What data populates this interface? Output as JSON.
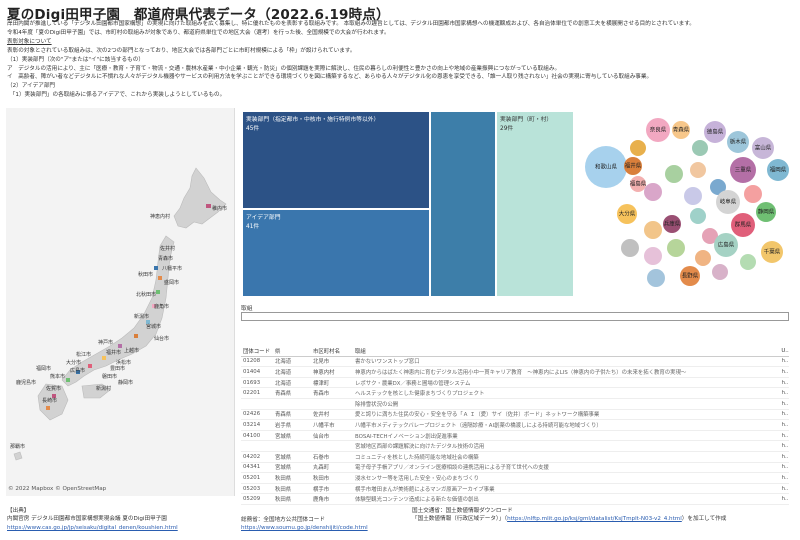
{
  "title": "夏のDigi田甲子園　都道府県代表データ（2022.6.19時点）",
  "intro": {
    "lines": [
      "岸田内閣が推進している「デジタル田園都市国家構想」の実現に向けた取組みを広く募集し、特に優れたものを表彰する取組みです。 本取組みの趣旨としては、デジタル田園都市国家構想への機運醸成および、各自治体単位での創意工夫を横展開させる目的とされています。",
      "令和4年度「夏のDigi田甲子園」では、市町村の取組みが対象であり、都道府県単位での地区大会（選考）を行った後、全国規模での大会が行われます。"
    ],
    "section_heading": "表彰対象について",
    "detail_lines": [
      "表彰の対象とされている取組みは、次の2つの部門となっており、地区大会では各部門ごとに市町村規模による「枠」が設けられています。",
      "（1）実装部門（次の\"ア\"または\"イ\"に該当するもの）",
      "ア　デジタルの活用により、主に「医療・教育・子育て・物流・交通・農林水産業・中小企業・観光・防災」の個別課題を実際に解決し、住民の暮らしの利便性と豊かさの向上や地域の産業振興につながっている取組み。",
      "イ　高齢者、障がい者などデジタルに不慣れな人々がデジタル機器やサービスの利用方法を学ぶことができる環境づくりを図に構築するなど、あらゆる人々がデジタル化の恩恵を享受できる、「誰一人取り残されない」社会の実現に寄与している取組み事業。",
      "（2）アイデア部門",
      "　「1）実装部門」の各取組みに係るアイデアで、これから実装しようとしているもの。"
    ]
  },
  "map": {
    "credit": "© 2022 Mapbox  © OpenStreetMap",
    "labels": [
      "稚内市",
      "神恵内村",
      "佐井村",
      "青森市",
      "八幡平市",
      "盛岡市",
      "秋田市",
      "北秋田市",
      "鹿角市",
      "新潟市",
      "宮城市",
      "仙台市",
      "神戸市",
      "上越市",
      "福岡市",
      "大分市",
      "鹿児島市",
      "那覇市",
      "熊本市",
      "長崎市",
      "福井市",
      "松江市",
      "広島市",
      "浜松市",
      "豊田市",
      "磐田市",
      "静岡市",
      "佐賀市",
      "新潟村"
    ]
  },
  "treemap": {
    "tiles": [
      {
        "label": "実装部門（指定都市・中核市・施行特例市等以外）",
        "value": "45件"
      },
      {
        "label": "アイデア部門",
        "value": "41件"
      },
      {
        "label": "",
        "value": ""
      },
      {
        "label": "実装部門（町・村）",
        "value": "29件"
      }
    ]
  },
  "bubbles": [
    {
      "name": "和歌山県",
      "color": "#a7d1ed"
    },
    {
      "name": "奈良県",
      "color": "#f2a8c1"
    },
    {
      "name": "青森県",
      "color": "#f7c78a"
    },
    {
      "name": "徳島県",
      "color": "#c6b2d9"
    },
    {
      "name": "栃木県",
      "color": "#9dc6da"
    },
    {
      "name": "富山県",
      "color": "#c7b6d8"
    },
    {
      "name": "三重県",
      "color": "#b46fa6"
    },
    {
      "name": "福岡県",
      "color": "#7fb8d2"
    },
    {
      "name": "岐阜県",
      "color": "#d4d4d4"
    },
    {
      "name": "福井県",
      "color": "#d97f3b"
    },
    {
      "name": "福島県",
      "color": "#f3b0b0"
    },
    {
      "name": "長野県",
      "color": "#e38b4b"
    },
    {
      "name": "兵庫県",
      "color": "#9a4f73"
    },
    {
      "name": "大分県",
      "color": "#f6c25c"
    },
    {
      "name": "静岡県",
      "color": "#6fbf73"
    },
    {
      "name": "群馬県",
      "color": "#e05f7a"
    },
    {
      "name": "千葉県",
      "color": "#f2c66b"
    },
    {
      "name": "広島県",
      "color": "#a5d2c4"
    }
  ],
  "search": {
    "label": "取組",
    "placeholder": ""
  },
  "table": {
    "headers": [
      "団体コード",
      "県",
      "市区町村名",
      "取組",
      "U.."
    ],
    "rows": [
      [
        "01208",
        "北海道",
        "北見市",
        "書かないワンストップ窓口",
        "h.."
      ],
      [
        "01404",
        "北海道",
        "神恵内村",
        "神恵内からはばたく神恵内に育むデジタル活用小中一貫キャリア教育　〜神恵内によLIS（神恵内の子供たち）の未来を拓く教育の実現〜",
        "h.."
      ],
      [
        "01693",
        "北海道",
        "標津町",
        "レポサク・農業DX／事務と圃場の管理システム",
        "h.."
      ],
      [
        "02201",
        "青森県",
        "青森市",
        "ヘルステックを核とした健康まちづくりプロジェクト",
        "h.."
      ],
      [
        "",
        "",
        "",
        "除排雪状況の公開",
        "h.."
      ],
      [
        "02426",
        "青森県",
        "佐井村",
        "愛と誇りに満ちた住民の安心・安全を守る「Ａ Ｉ（愛）サイ（佐井）ボード」ネットワーク構築事業",
        "h.."
      ],
      [
        "03214",
        "岩手県",
        "八幡平市",
        "八幡平市メディテックバレープロジェクト（遠隔診療・AI創薬の橋渡しによる持続可能な地域づくり）",
        "h.."
      ],
      [
        "04100",
        "宮城県",
        "仙台市",
        "BOSAI-TECHイノベーション創出促進事業",
        "h.."
      ],
      [
        "",
        "",
        "",
        "宮城地区西部の課題解決に向けたデジタル技術の活用",
        "h.."
      ],
      [
        "04202",
        "宮城県",
        "石巻市",
        "コミュニティを核とした持続可能な地域社会の構築",
        "h.."
      ],
      [
        "04341",
        "宮城県",
        "丸森町",
        "電子母子手帳アプリ／オンライン医療相談の連携活用による子育て世代への支援",
        "h.."
      ],
      [
        "05201",
        "秋田県",
        "秋田市",
        "浸水センサー等を活用した安全・安心のまちづくり",
        "h.."
      ],
      [
        "05203",
        "秋田県",
        "横手市",
        "横手市増田まんが美術館によるマンガ原画アーカイブ事業",
        "h.."
      ],
      [
        "05209",
        "秋田県",
        "鹿角市",
        "体験型観光コンテンツ造成による新たな価値の創出",
        "h.."
      ]
    ]
  },
  "footer": {
    "source_heading": "【出典】",
    "source1_title": "内閣官房 デジタル田園都市国家構想実現会議 夏のDigi田甲子園",
    "source1_url": "https://www.cas.go.jp/jp/seisaku/digital_denen/koushien.html",
    "source2_title": "総務省：全国地方公共団体コード",
    "source2_url": "https://www.soumu.go.jp/denshijiti/code.html",
    "source3_title1": "国土交通省：国土数値情報ダウンロード",
    "source3_title2": "「国土数値情報（行政区域データ）」（",
    "source3_url": "https://nlftp.mlit.go.jp/ksj/gml/datalist/KsjTmplt-N03-v2_4.html",
    "source3_suffix": "）を加工して作成"
  }
}
